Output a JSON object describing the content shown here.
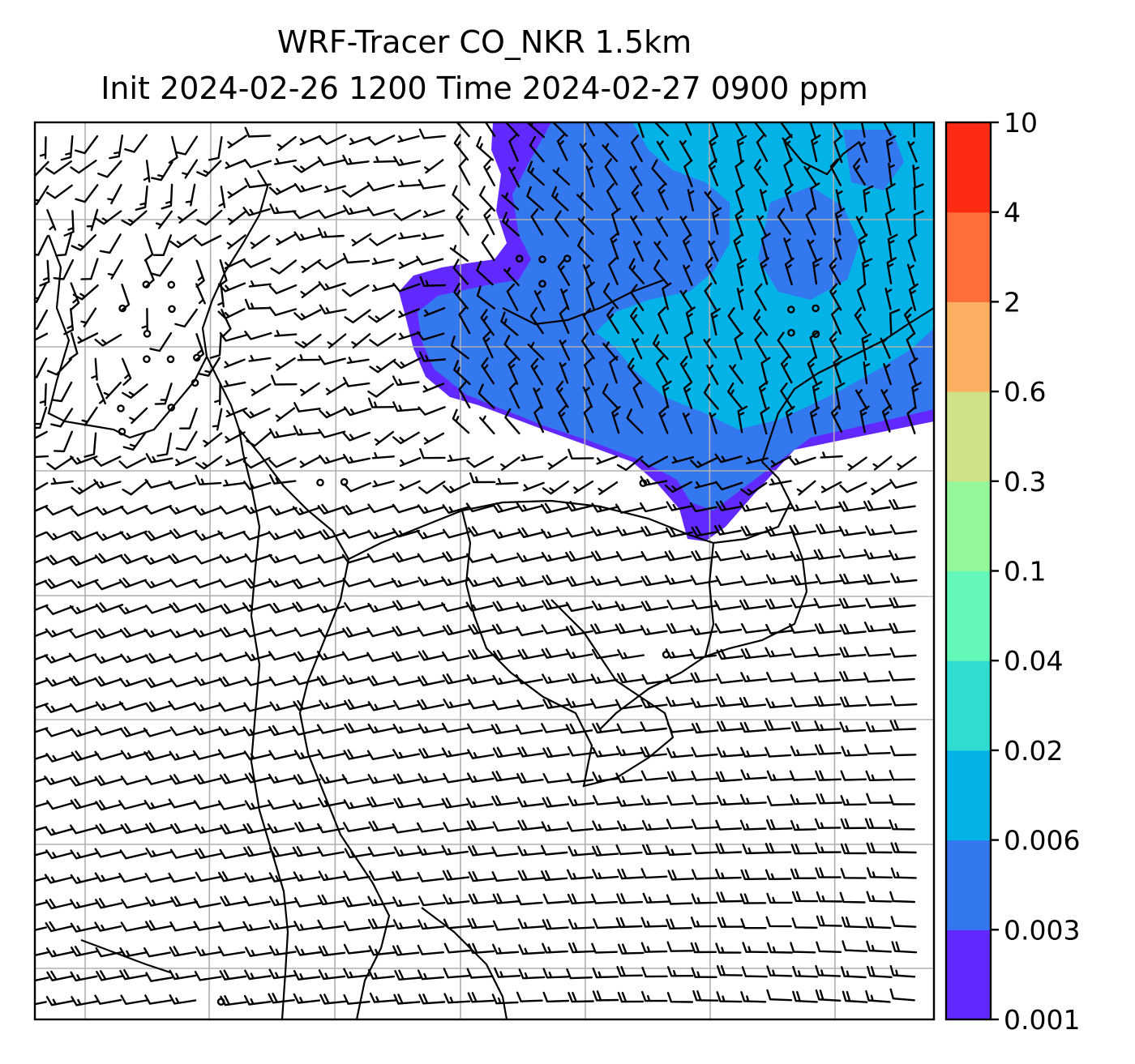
{
  "title": {
    "line1": "WRF-Tracer CO_NKR 1.5km",
    "line2": "Init 2024-02-26 1200 Time 2024-02-27 0900 ppm"
  },
  "colorbar": {
    "levels": [
      "0.001",
      "0.003",
      "0.006",
      "0.02",
      "0.04",
      "0.1",
      "0.3",
      "0.6",
      "2",
      "4",
      "10"
    ],
    "colors": [
      "#6229ff",
      "#3478f0",
      "#03b2e6",
      "#2fdcd2",
      "#64f8b8",
      "#94f79a",
      "#cee287",
      "#fdb062",
      "#ff6d38",
      "#ff2a14"
    ]
  },
  "plot": {
    "wind_barbs": true,
    "gridlines": true,
    "coastlines": true,
    "contour_fill_levels_shown": [
      "0.001",
      "0.003",
      "0.006"
    ]
  }
}
